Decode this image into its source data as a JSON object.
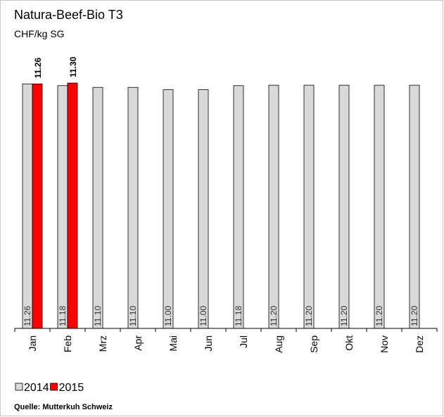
{
  "chart_data": {
    "type": "bar",
    "title": "Natura-Beef-Bio T3",
    "subtitle": "CHF/kg SG",
    "categories": [
      "Jan",
      "Feb",
      "Mrz",
      "Apr",
      "Mai",
      "Jun",
      "Jul",
      "Aug",
      "Sep",
      "Okt",
      "Nov",
      "Dez"
    ],
    "series": [
      {
        "name": "2014",
        "color": "#d9d9d9",
        "values": [
          11.26,
          11.18,
          11.1,
          11.1,
          11.0,
          11.0,
          11.18,
          11.2,
          11.2,
          11.2,
          11.2,
          11.2
        ],
        "value_labels": [
          "11.26",
          "11.18",
          "11.10",
          "11.10",
          "11.00",
          "11.00",
          "11.18",
          "11.20",
          "11.20",
          "11.20",
          "11.20",
          "11.20"
        ]
      },
      {
        "name": "2015",
        "color": "#ff0000",
        "values": [
          11.26,
          11.3,
          null,
          null,
          null,
          null,
          null,
          null,
          null,
          null,
          null,
          null
        ],
        "value_labels": [
          "11.26",
          "11.30",
          null,
          null,
          null,
          null,
          null,
          null,
          null,
          null,
          null,
          null
        ]
      }
    ],
    "ylim": [
      0,
      12.5
    ],
    "source": "Quelle: Mutterkuh Schweiz"
  }
}
